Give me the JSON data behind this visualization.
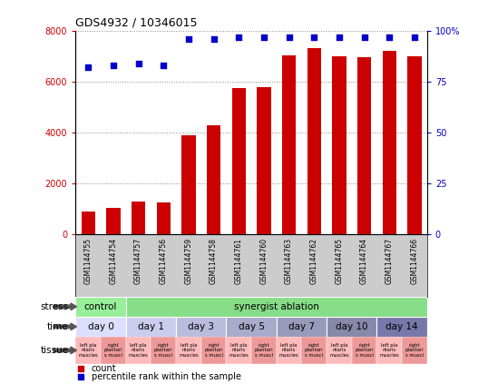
{
  "title": "GDS4932 / 10346015",
  "samples": [
    "GSM1144755",
    "GSM1144754",
    "GSM1144757",
    "GSM1144756",
    "GSM1144759",
    "GSM1144758",
    "GSM1144761",
    "GSM1144760",
    "GSM1144763",
    "GSM1144762",
    "GSM1144765",
    "GSM1144764",
    "GSM1144767",
    "GSM1144766"
  ],
  "counts": [
    900,
    1050,
    1300,
    1250,
    3900,
    4300,
    5750,
    5800,
    7050,
    7300,
    7000,
    6950,
    7200,
    7000
  ],
  "percentiles": [
    82,
    83,
    84,
    83,
    96,
    96,
    97,
    97,
    97,
    97,
    97,
    97,
    97,
    97
  ],
  "bar_color": "#CC0000",
  "dot_color": "#0000CC",
  "ylim_left": [
    0,
    8000
  ],
  "ylim_right": [
    0,
    100
  ],
  "yticks_left": [
    0,
    2000,
    4000,
    6000,
    8000
  ],
  "yticks_right": [
    0,
    25,
    50,
    75,
    100
  ],
  "ytick_right_labels": [
    "0",
    "25",
    "50",
    "75",
    "100%"
  ],
  "time_groups": [
    {
      "label": "day 0",
      "start": 0,
      "end": 2,
      "color": "#DEDEFF"
    },
    {
      "label": "day 1",
      "start": 2,
      "end": 4,
      "color": "#CCCCEE"
    },
    {
      "label": "day 3",
      "start": 4,
      "end": 6,
      "color": "#BBBBDD"
    },
    {
      "label": "day 5",
      "start": 6,
      "end": 8,
      "color": "#AAAACC"
    },
    {
      "label": "day 7",
      "start": 8,
      "end": 10,
      "color": "#9999BB"
    },
    {
      "label": "day 10",
      "start": 10,
      "end": 12,
      "color": "#8888AA"
    },
    {
      "label": "day 14",
      "start": 12,
      "end": 14,
      "color": "#7777AA"
    }
  ],
  "stress_control": {
    "text": "control",
    "start": 0,
    "end": 2,
    "color": "#99EE99"
  },
  "stress_ablation": {
    "text": "synergist ablation",
    "start": 2,
    "end": 14,
    "color": "#88DD88"
  },
  "tissue_left_color": "#FFBBBB",
  "tissue_right_color": "#EE9999",
  "tissue_left_text": "left pla\nntaris\nmuscles",
  "tissue_right_text": "right\nplantari\ns muscl",
  "xticklabel_bg": "#CCCCCC",
  "bg_color": "#FFFFFF",
  "grid_color": "#888888",
  "row_label_stress": "stress",
  "row_label_time": "time",
  "row_label_tissue": "tissue",
  "legend_count_color": "#CC0000",
  "legend_pct_color": "#0000CC",
  "legend_count_text": "count",
  "legend_pct_text": "percentile rank within the sample"
}
